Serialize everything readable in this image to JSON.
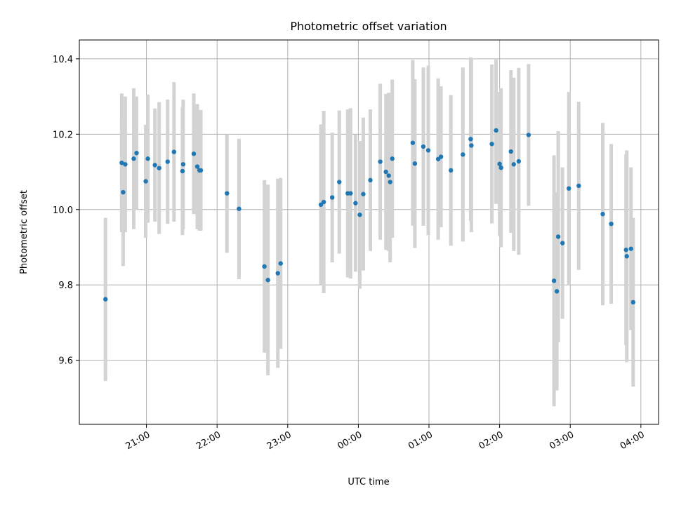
{
  "chart_data": {
    "type": "scatter",
    "title": "Photometric offset variation",
    "xlabel": "UTC time",
    "ylabel": "Photometric offset",
    "x_unit": "hours since 00:00 UTC (negative = previous evening)",
    "xlim": [
      -3.95,
      4.25
    ],
    "ylim": [
      9.43,
      10.45
    ],
    "x_ticks": [
      {
        "value": -3,
        "label": "21:00"
      },
      {
        "value": -2,
        "label": "22:00"
      },
      {
        "value": -1,
        "label": "23:00"
      },
      {
        "value": 0,
        "label": "00:00"
      },
      {
        "value": 1,
        "label": "01:00"
      },
      {
        "value": 2,
        "label": "02:00"
      },
      {
        "value": 3,
        "label": "03:00"
      },
      {
        "value": 4,
        "label": "04:00"
      }
    ],
    "y_ticks": [
      {
        "value": 9.6,
        "label": "9.6"
      },
      {
        "value": 9.8,
        "label": "9.8"
      },
      {
        "value": 10.0,
        "label": "10.0"
      },
      {
        "value": 10.2,
        "label": "10.2"
      },
      {
        "value": 10.4,
        "label": "10.4"
      }
    ],
    "grid": true,
    "colors": {
      "point": "#1f77b4",
      "errorbar": "#d3d3d3",
      "grid": "#b0b0b0"
    },
    "points": [
      {
        "x": -3.58,
        "y": 9.762,
        "lo": 9.545,
        "hi": 9.978
      },
      {
        "x": -3.35,
        "y": 10.124,
        "lo": 9.94,
        "hi": 10.308
      },
      {
        "x": -3.33,
        "y": 10.046,
        "lo": 9.85,
        "hi": 10.24
      },
      {
        "x": -3.3,
        "y": 10.12,
        "lo": 9.94,
        "hi": 10.3
      },
      {
        "x": -3.18,
        "y": 10.135,
        "lo": 9.948,
        "hi": 10.322
      },
      {
        "x": -3.14,
        "y": 10.15,
        "lo": 10.0,
        "hi": 10.3
      },
      {
        "x": -3.01,
        "y": 10.075,
        "lo": 9.925,
        "hi": 10.225
      },
      {
        "x": -2.98,
        "y": 10.135,
        "lo": 9.965,
        "hi": 10.305
      },
      {
        "x": -2.88,
        "y": 10.118,
        "lo": 9.968,
        "hi": 10.268
      },
      {
        "x": -2.82,
        "y": 10.11,
        "lo": 9.935,
        "hi": 10.285
      },
      {
        "x": -2.7,
        "y": 10.127,
        "lo": 9.962,
        "hi": 10.292
      },
      {
        "x": -2.61,
        "y": 10.153,
        "lo": 9.968,
        "hi": 10.338
      },
      {
        "x": -2.48,
        "y": 10.12,
        "lo": 9.948,
        "hi": 10.292
      },
      {
        "x": -2.49,
        "y": 10.102,
        "lo": 9.932,
        "hi": 10.272
      },
      {
        "x": -2.33,
        "y": 10.148,
        "lo": 9.988,
        "hi": 10.308
      },
      {
        "x": -2.28,
        "y": 10.114,
        "lo": 9.948,
        "hi": 10.28
      },
      {
        "x": -2.25,
        "y": 10.104,
        "lo": 9.944,
        "hi": 10.264
      },
      {
        "x": -2.23,
        "y": 10.104,
        "lo": 9.944,
        "hi": 10.264
      },
      {
        "x": -1.86,
        "y": 10.043,
        "lo": 9.885,
        "hi": 10.2
      },
      {
        "x": -1.69,
        "y": 10.002,
        "lo": 9.815,
        "hi": 10.188
      },
      {
        "x": -1.33,
        "y": 9.849,
        "lo": 9.62,
        "hi": 10.078
      },
      {
        "x": -1.28,
        "y": 9.813,
        "lo": 9.56,
        "hi": 10.066
      },
      {
        "x": -1.14,
        "y": 9.831,
        "lo": 9.58,
        "hi": 10.082
      },
      {
        "x": -1.1,
        "y": 9.857,
        "lo": 9.63,
        "hi": 10.084
      },
      {
        "x": -0.53,
        "y": 10.013,
        "lo": 9.8,
        "hi": 10.226
      },
      {
        "x": -0.49,
        "y": 10.02,
        "lo": 9.778,
        "hi": 10.262
      },
      {
        "x": -0.37,
        "y": 10.032,
        "lo": 9.86,
        "hi": 10.204
      },
      {
        "x": -0.27,
        "y": 10.073,
        "lo": 9.883,
        "hi": 10.263
      },
      {
        "x": -0.15,
        "y": 10.043,
        "lo": 9.82,
        "hi": 10.266
      },
      {
        "x": -0.11,
        "y": 10.043,
        "lo": 9.817,
        "hi": 10.269
      },
      {
        "x": -0.04,
        "y": 10.017,
        "lo": 9.835,
        "hi": 10.199
      },
      {
        "x": 0.02,
        "y": 9.986,
        "lo": 9.79,
        "hi": 10.182
      },
      {
        "x": 0.07,
        "y": 10.041,
        "lo": 9.838,
        "hi": 10.244
      },
      {
        "x": 0.17,
        "y": 10.078,
        "lo": 9.89,
        "hi": 10.266
      },
      {
        "x": 0.31,
        "y": 10.127,
        "lo": 9.92,
        "hi": 10.334
      },
      {
        "x": 0.39,
        "y": 10.1,
        "lo": 9.893,
        "hi": 10.307
      },
      {
        "x": 0.43,
        "y": 10.09,
        "lo": 9.89,
        "hi": 10.31
      },
      {
        "x": 0.45,
        "y": 10.073,
        "lo": 9.86,
        "hi": 10.286
      },
      {
        "x": 0.48,
        "y": 10.135,
        "lo": 9.925,
        "hi": 10.345
      },
      {
        "x": 0.77,
        "y": 10.177,
        "lo": 9.957,
        "hi": 10.397
      },
      {
        "x": 0.8,
        "y": 10.122,
        "lo": 9.898,
        "hi": 10.346
      },
      {
        "x": 0.92,
        "y": 10.167,
        "lo": 9.957,
        "hi": 10.377
      },
      {
        "x": 0.99,
        "y": 10.157,
        "lo": 9.932,
        "hi": 10.382
      },
      {
        "x": 1.13,
        "y": 10.134,
        "lo": 9.92,
        "hi": 10.348
      },
      {
        "x": 1.17,
        "y": 10.14,
        "lo": 9.953,
        "hi": 10.327
      },
      {
        "x": 1.31,
        "y": 10.104,
        "lo": 9.904,
        "hi": 10.304
      },
      {
        "x": 1.48,
        "y": 10.146,
        "lo": 9.915,
        "hi": 10.377
      },
      {
        "x": 1.59,
        "y": 10.187,
        "lo": 9.97,
        "hi": 10.404
      },
      {
        "x": 1.6,
        "y": 10.17,
        "lo": 9.94,
        "hi": 10.4
      },
      {
        "x": 1.89,
        "y": 10.174,
        "lo": 9.963,
        "hi": 10.385
      },
      {
        "x": 1.95,
        "y": 10.21,
        "lo": 10.015,
        "hi": 10.4
      },
      {
        "x": 2.0,
        "y": 10.121,
        "lo": 9.93,
        "hi": 10.312
      },
      {
        "x": 2.02,
        "y": 10.111,
        "lo": 9.9,
        "hi": 10.322
      },
      {
        "x": 2.16,
        "y": 10.154,
        "lo": 9.938,
        "hi": 10.37
      },
      {
        "x": 2.2,
        "y": 10.12,
        "lo": 9.89,
        "hi": 10.35
      },
      {
        "x": 2.27,
        "y": 10.128,
        "lo": 9.88,
        "hi": 10.376
      },
      {
        "x": 2.41,
        "y": 10.198,
        "lo": 10.01,
        "hi": 10.386
      },
      {
        "x": 2.77,
        "y": 9.811,
        "lo": 9.478,
        "hi": 10.144
      },
      {
        "x": 2.81,
        "y": 9.783,
        "lo": 9.52,
        "hi": 10.046
      },
      {
        "x": 2.83,
        "y": 9.928,
        "lo": 9.648,
        "hi": 10.208
      },
      {
        "x": 2.89,
        "y": 9.911,
        "lo": 9.71,
        "hi": 10.112
      },
      {
        "x": 2.98,
        "y": 10.056,
        "lo": 9.8,
        "hi": 10.312
      },
      {
        "x": 3.12,
        "y": 10.063,
        "lo": 9.84,
        "hi": 10.286
      },
      {
        "x": 3.46,
        "y": 9.988,
        "lo": 9.746,
        "hi": 10.23
      },
      {
        "x": 3.58,
        "y": 9.962,
        "lo": 9.75,
        "hi": 10.174
      },
      {
        "x": 3.79,
        "y": 9.893,
        "lo": 9.64,
        "hi": 10.146
      },
      {
        "x": 3.8,
        "y": 9.876,
        "lo": 9.595,
        "hi": 10.157
      },
      {
        "x": 3.86,
        "y": 9.896,
        "lo": 9.68,
        "hi": 10.112
      },
      {
        "x": 3.89,
        "y": 9.754,
        "lo": 9.53,
        "hi": 9.978
      }
    ]
  }
}
